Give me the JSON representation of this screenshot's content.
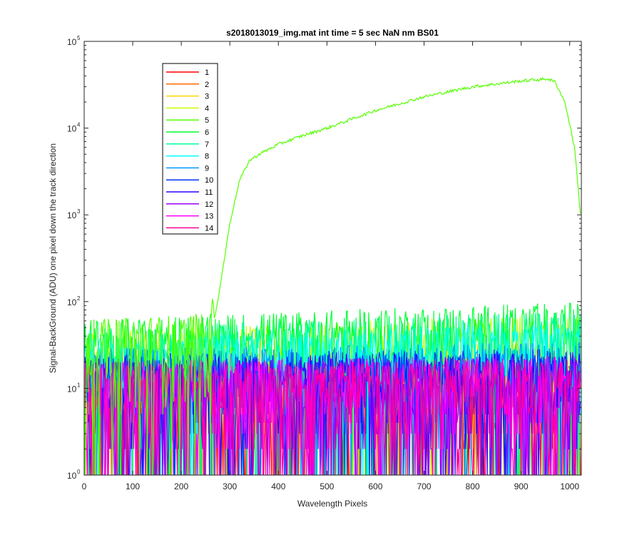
{
  "chart_data": {
    "type": "line",
    "title": "s2018013019_img.mat int time = 5 sec  NaN nm BS01",
    "xlabel": "Wavelength Pixels",
    "ylabel": "Signal-BackGround (ADU) one pixel down the track direction",
    "x_range": [
      0,
      1024
    ],
    "y_range": [
      1,
      100000
    ],
    "y_scale": "log",
    "grid": false,
    "legend_position": "top-left",
    "x_ticks": [
      "0",
      "100",
      "200",
      "300",
      "400",
      "500",
      "600",
      "700",
      "800",
      "900",
      "1000"
    ],
    "x_tick_values": [
      0,
      100,
      200,
      300,
      400,
      500,
      600,
      700,
      800,
      900,
      1000
    ],
    "y_ticks": [
      {
        "base": "10",
        "exp": "0",
        "value": 1
      },
      {
        "base": "10",
        "exp": "1",
        "value": 10
      },
      {
        "base": "10",
        "exp": "2",
        "value": 100
      },
      {
        "base": "10",
        "exp": "3",
        "value": 1000
      },
      {
        "base": "10",
        "exp": "4",
        "value": 10000
      },
      {
        "base": "10",
        "exp": "5",
        "value": 100000
      }
    ],
    "series": [
      {
        "name": "1",
        "color": "#ff0000",
        "kind": "noise",
        "level": 8
      },
      {
        "name": "2",
        "color": "#ff6a00",
        "kind": "noise",
        "level": 10
      },
      {
        "name": "3",
        "color": "#ffd400",
        "kind": "noise",
        "level": 14
      },
      {
        "name": "4",
        "color": "#c8ff00",
        "kind": "noise",
        "level": 22
      },
      {
        "name": "5",
        "color": "#55ff00",
        "kind": "signal",
        "level": 30,
        "profile": [
          [
            0,
            30
          ],
          [
            255,
            32
          ],
          [
            265,
            50
          ],
          [
            280,
            150
          ],
          [
            300,
            800
          ],
          [
            320,
            2500
          ],
          [
            340,
            4200
          ],
          [
            360,
            5000
          ],
          [
            400,
            6500
          ],
          [
            450,
            8200
          ],
          [
            500,
            10000
          ],
          [
            600,
            16000
          ],
          [
            700,
            23000
          ],
          [
            800,
            30000
          ],
          [
            900,
            35000
          ],
          [
            955,
            37000
          ],
          [
            970,
            34000
          ],
          [
            990,
            20000
          ],
          [
            1010,
            6000
          ],
          [
            1023,
            900
          ]
        ]
      },
      {
        "name": "6",
        "color": "#00ff33",
        "kind": "noise",
        "level": 30
      },
      {
        "name": "7",
        "color": "#00ff99",
        "kind": "noise",
        "level": 24
      },
      {
        "name": "8",
        "color": "#00ffff",
        "kind": "noise",
        "level": 18
      },
      {
        "name": "9",
        "color": "#0099ff",
        "kind": "noise",
        "level": 14
      },
      {
        "name": "10",
        "color": "#0033ff",
        "kind": "noise",
        "level": 12
      },
      {
        "name": "11",
        "color": "#3300ff",
        "kind": "noise",
        "level": 11
      },
      {
        "name": "12",
        "color": "#9900ff",
        "kind": "noise",
        "level": 10
      },
      {
        "name": "13",
        "color": "#ff00ff",
        "kind": "noise",
        "level": 10
      },
      {
        "name": "14",
        "color": "#ff0099",
        "kind": "noise",
        "level": 9
      }
    ]
  }
}
